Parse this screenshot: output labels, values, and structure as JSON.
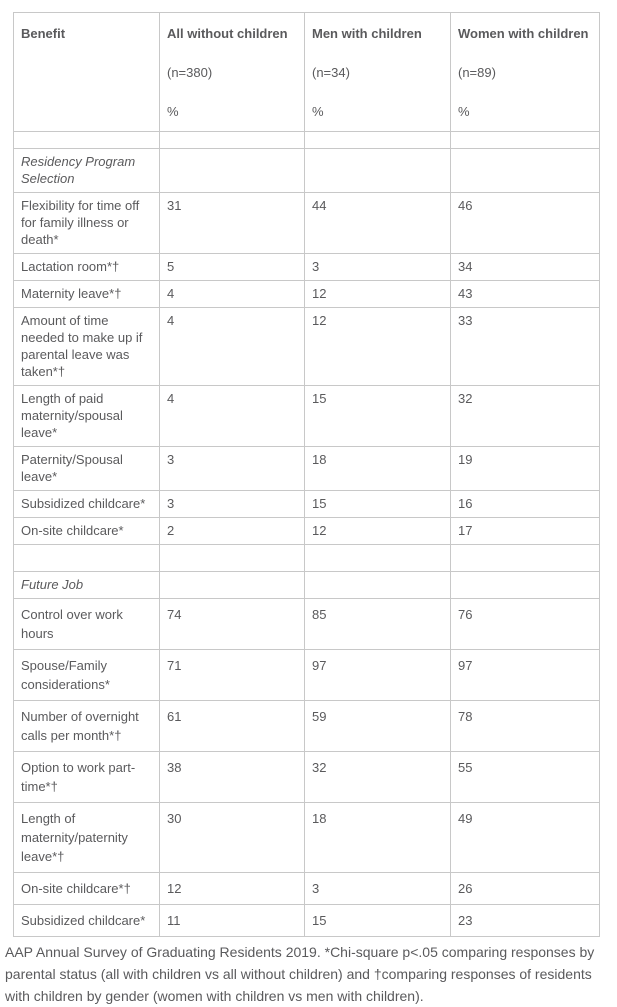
{
  "colors": {
    "text": "#5a5a5c",
    "border": "#c8c8c8",
    "background": "#ffffff"
  },
  "chart_data": {
    "type": "table",
    "benefit_header": "Benefit",
    "columns": [
      {
        "label": "All without children",
        "n": "(n=380)",
        "unit": "%"
      },
      {
        "label": "Men with children",
        "n": "(n=34)",
        "unit": "%"
      },
      {
        "label": "Women with children",
        "n": "(n=89)",
        "unit": "%"
      }
    ],
    "rows": [
      {
        "type": "spacer"
      },
      {
        "type": "section",
        "label": "Residency Program Selection"
      },
      {
        "type": "data",
        "label": "Flexibility for time off for family illness or death*",
        "values": [
          31,
          44,
          46
        ]
      },
      {
        "type": "data",
        "label": "Lactation room*†",
        "values": [
          5,
          3,
          34
        ]
      },
      {
        "type": "data",
        "label": "Maternity leave*†",
        "values": [
          4,
          12,
          43
        ]
      },
      {
        "type": "data",
        "label": "Amount of time needed to make up if parental leave was taken*†",
        "values": [
          4,
          12,
          33
        ]
      },
      {
        "type": "data",
        "label": "Length of paid maternity/spousal leave*",
        "values": [
          4,
          15,
          32
        ]
      },
      {
        "type": "data",
        "label": "Paternity/Spousal leave*",
        "values": [
          3,
          18,
          19
        ]
      },
      {
        "type": "data",
        "label": "Subsidized childcare*",
        "values": [
          3,
          15,
          16
        ]
      },
      {
        "type": "data",
        "label": "On-site childcare*",
        "values": [
          2,
          12,
          17
        ]
      },
      {
        "type": "spacer"
      },
      {
        "type": "section",
        "label": "Future Job"
      },
      {
        "type": "data",
        "loose": true,
        "label": "Control over work hours",
        "values": [
          74,
          85,
          76
        ]
      },
      {
        "type": "data",
        "loose": true,
        "label": "Spouse/Family considerations*",
        "values": [
          71,
          97,
          97
        ]
      },
      {
        "type": "data",
        "loose": true,
        "label": "Number of overnight calls per month*†",
        "values": [
          61,
          59,
          78
        ]
      },
      {
        "type": "data",
        "loose": true,
        "label": "Option to work part-time*†",
        "values": [
          38,
          32,
          55
        ]
      },
      {
        "type": "data",
        "loose": true,
        "label": "Length of maternity/paternity leave*†",
        "values": [
          30,
          18,
          49
        ]
      },
      {
        "type": "data",
        "loose": true,
        "label": "On-site childcare*†",
        "values": [
          12,
          3,
          26
        ]
      },
      {
        "type": "data",
        "loose": true,
        "label": "Subsidized childcare*",
        "values": [
          11,
          15,
          23
        ]
      }
    ]
  },
  "footnote": "AAP Annual Survey of Graduating Residents 2019. *Chi-square p<.05 comparing responses by parental status (all with children vs all without children) and †comparing responses of residents with children by gender (women with children vs men with children)."
}
